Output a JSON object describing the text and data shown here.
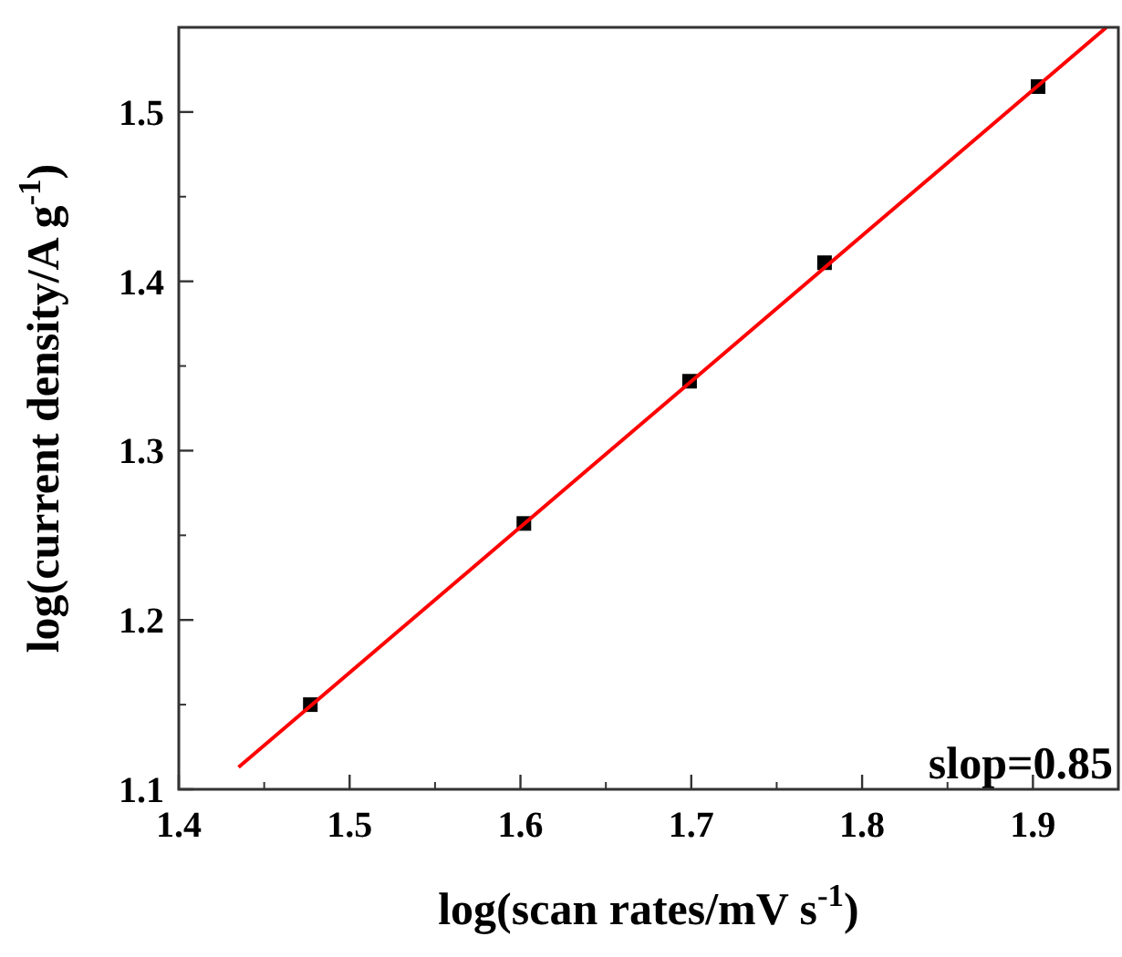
{
  "chart_data": {
    "type": "scatter",
    "xlabel": "log(scan rates/mV s$^{-1}$)",
    "ylabel": "log(current density/A g$^{-1}$)",
    "xlim": [
      1.4,
      1.95
    ],
    "xticks": [
      1.4,
      1.5,
      1.6,
      1.7,
      1.8,
      1.9
    ],
    "ylim": [
      1.1,
      1.55
    ],
    "yticks": [
      1.1,
      1.2,
      1.3,
      1.4,
      1.5
    ],
    "series": [
      {
        "color": "#000000",
        "marker": "square",
        "x": [
          1.477,
          1.602,
          1.699,
          1.778,
          1.903
        ],
        "values": [
          1.15,
          1.257,
          1.341,
          1.411,
          1.515
        ]
      },
      {
        "type": "line",
        "color": "#ff0000",
        "marker": "none",
        "line_style": "solid",
        "x": [
          1.435,
          1.943
        ],
        "values": [
          1.113,
          1.55
        ]
      }
    ],
    "annotations": [
      "slop=0.85"
    ]
  }
}
